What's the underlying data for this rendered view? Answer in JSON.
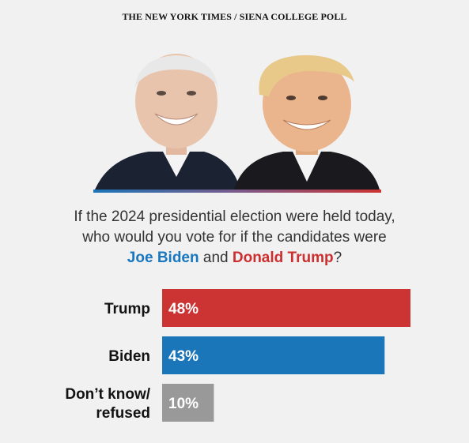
{
  "source": "THE NEW YORK TIMES / SIENA COLLEGE POLL",
  "question": {
    "line1": "If the 2024 presidential election were held today,",
    "line2": "who would you vote for if the candidates were",
    "candidate_a": "Joe Biden",
    "connector": "and",
    "candidate_b": "Donald Trump",
    "end": "?"
  },
  "portraits": [
    "Joe Biden",
    "Donald Trump"
  ],
  "colors": {
    "trump": "#cc3333",
    "biden": "#1b75b9",
    "unsure": "#999999",
    "background": "#f1f1f1"
  },
  "chart_data": {
    "type": "bar",
    "orientation": "horizontal",
    "categories": [
      "Trump",
      "Biden",
      "Don’t know/ refused"
    ],
    "category_lines": [
      [
        "Trump"
      ],
      [
        "Biden"
      ],
      [
        "Don’t know/",
        "refused"
      ]
    ],
    "values": [
      48,
      43,
      10
    ],
    "labels": [
      "48%",
      "43%",
      "10%"
    ],
    "unit": "%",
    "xlim": [
      0,
      48
    ],
    "bar_colors": [
      "#cc3333",
      "#1b75b9",
      "#999999"
    ]
  }
}
